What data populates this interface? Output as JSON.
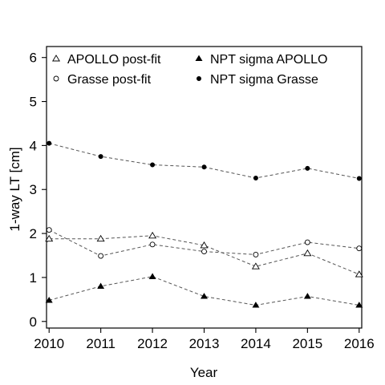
{
  "chart_data": {
    "type": "line",
    "xlabel": "Year",
    "ylabel": "1-way LT [cm]",
    "xlim": [
      2009.95,
      2016.05
    ],
    "ylim": [
      -0.15,
      6.25
    ],
    "x_ticks": [
      "2010",
      "2011",
      "2012",
      "2013",
      "2014",
      "2015",
      "2016"
    ],
    "y_ticks": [
      "0",
      "1",
      "2",
      "3",
      "4",
      "5",
      "6"
    ],
    "grid": false,
    "legend_position": "top",
    "x": [
      2010,
      2011,
      2012,
      2013,
      2014,
      2015,
      2016
    ],
    "series": [
      {
        "name": "APOLLO post-fit",
        "marker": "open-triangle",
        "values": [
          1.88,
          1.88,
          1.95,
          1.73,
          1.25,
          1.55,
          1.07
        ],
        "leading_segment_from_y": 1.78
      },
      {
        "name": "Grasse post-fit",
        "marker": "open-circle",
        "values": [
          2.08,
          1.49,
          1.75,
          1.59,
          1.52,
          1.8,
          1.66
        ]
      },
      {
        "name": "NPT sigma APOLLO",
        "marker": "filled-triangle",
        "values": [
          0.48,
          0.8,
          1.02,
          0.57,
          0.37,
          0.57,
          0.37
        ]
      },
      {
        "name": "NPT sigma Grasse",
        "marker": "filled-circle",
        "values": [
          4.05,
          3.75,
          3.56,
          3.51,
          3.26,
          3.48,
          3.25
        ]
      }
    ],
    "line_style": "dashed",
    "line_color": "#555555",
    "marker_color": "#000000"
  }
}
